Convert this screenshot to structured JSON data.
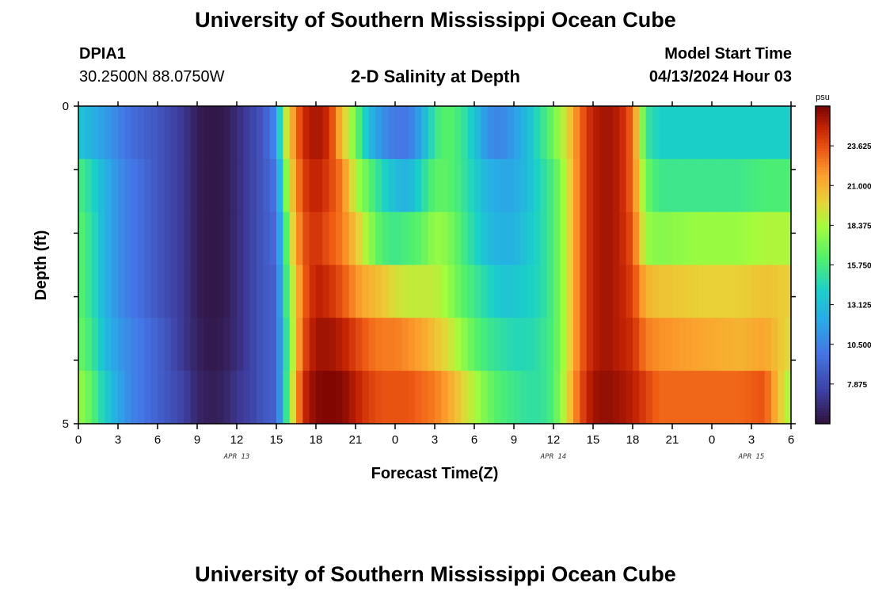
{
  "header": {
    "title": "University of Southern Mississippi Ocean Cube",
    "station": "DPIA1",
    "coordinates": "30.2500N  88.0750W",
    "subtitle": "2-D Salinity at Depth",
    "model_start_label": "Model Start Time",
    "model_start_value": "04/13/2024 Hour 03"
  },
  "footer": {
    "title": "University of Southern Mississippi Ocean Cube"
  },
  "chart_data": {
    "type": "heatmap",
    "xlabel": "Forecast Time(Z)",
    "ylabel": "Depth (ft)",
    "x_tick_labels": [
      "0",
      "3",
      "6",
      "9",
      "12",
      "15",
      "18",
      "21",
      "0",
      "3",
      "6",
      "9",
      "12",
      "15",
      "18",
      "21",
      "0",
      "3",
      "6"
    ],
    "x_range_hours": [
      0,
      54
    ],
    "date_labels": [
      {
        "label": "APR 13",
        "hour": 12
      },
      {
        "label": "APR 14",
        "hour": 36
      },
      {
        "label": "APR 15",
        "hour": 51
      }
    ],
    "y_tick_labels": [
      "0",
      "5"
    ],
    "y_range": [
      0,
      5
    ],
    "colorbar": {
      "unit": "psu",
      "tick_labels": [
        "7.875",
        "10.500",
        "13.125",
        "15.750",
        "18.375",
        "21.000",
        "23.625"
      ],
      "range": [
        5.25,
        26.25
      ]
    },
    "depth_rows": 6,
    "salinity_profile": [
      {
        "hour": 0,
        "depth_values": [
          13.5,
          16.0,
          16.5,
          16.5,
          17.0,
          18.0
        ]
      },
      {
        "hour": 1,
        "depth_values": [
          12.5,
          14.5,
          15.0,
          15.0,
          15.5,
          16.5
        ]
      },
      {
        "hour": 2,
        "depth_values": [
          11.5,
          12.5,
          12.5,
          12.5,
          13.0,
          14.0
        ]
      },
      {
        "hour": 3,
        "depth_values": [
          10.5,
          11.0,
          11.0,
          11.0,
          11.5,
          12.0
        ]
      },
      {
        "hour": 4,
        "depth_values": [
          9.5,
          10.0,
          10.0,
          10.0,
          10.5,
          10.5
        ]
      },
      {
        "hour": 6,
        "depth_values": [
          8.5,
          8.5,
          8.5,
          8.5,
          9.0,
          9.0
        ]
      },
      {
        "hour": 8,
        "depth_values": [
          7.0,
          7.0,
          7.0,
          7.0,
          7.0,
          7.5
        ]
      },
      {
        "hour": 9,
        "depth_values": [
          5.8,
          5.8,
          5.8,
          5.8,
          6.0,
          6.2
        ]
      },
      {
        "hour": 10,
        "depth_values": [
          5.5,
          5.5,
          5.5,
          5.5,
          5.6,
          5.8
        ]
      },
      {
        "hour": 11,
        "depth_values": [
          5.6,
          5.6,
          5.6,
          5.6,
          5.8,
          6.0
        ]
      },
      {
        "hour": 12,
        "depth_values": [
          6.5,
          6.5,
          6.5,
          6.5,
          6.5,
          7.0
        ]
      },
      {
        "hour": 13,
        "depth_values": [
          7.5,
          7.5,
          7.5,
          7.5,
          7.5,
          7.5
        ]
      },
      {
        "hour": 14,
        "depth_values": [
          8.5,
          8.5,
          8.5,
          8.5,
          8.5,
          8.5
        ]
      },
      {
        "hour": 15,
        "depth_values": [
          11.0,
          10.0,
          9.5,
          9.0,
          9.0,
          9.0
        ]
      },
      {
        "hour": 15.5,
        "depth_values": [
          17.5,
          15.5,
          14.0,
          13.5,
          13.0,
          13.0
        ]
      },
      {
        "hour": 16,
        "depth_values": [
          20.5,
          19.5,
          18.5,
          17.5,
          17.0,
          17.5
        ]
      },
      {
        "hour": 17,
        "depth_values": [
          24.5,
          24.0,
          23.5,
          23.0,
          23.5,
          24.5
        ]
      },
      {
        "hour": 18,
        "depth_values": [
          25.5,
          25.0,
          24.5,
          25.0,
          25.5,
          26.0
        ]
      },
      {
        "hour": 19,
        "depth_values": [
          24.5,
          24.0,
          23.5,
          24.5,
          25.5,
          26.2
        ]
      },
      {
        "hour": 20,
        "depth_values": [
          20.5,
          22.5,
          22.5,
          23.5,
          25.0,
          26.0
        ]
      },
      {
        "hour": 21,
        "depth_values": [
          17.0,
          18.5,
          20.5,
          22.0,
          24.0,
          25.0
        ]
      },
      {
        "hour": 22,
        "depth_values": [
          13.0,
          16.5,
          18.0,
          21.0,
          23.0,
          24.0
        ]
      },
      {
        "hour": 23,
        "depth_values": [
          11.0,
          14.5,
          16.0,
          20.5,
          22.5,
          23.5
        ]
      },
      {
        "hour": 24,
        "depth_values": [
          10.0,
          13.0,
          15.5,
          19.5,
          22.5,
          23.5
        ]
      },
      {
        "hour": 25,
        "depth_values": [
          10.0,
          12.5,
          16.0,
          19.0,
          22.0,
          23.5
        ]
      },
      {
        "hour": 26,
        "depth_values": [
          12.0,
          14.5,
          16.5,
          19.0,
          21.5,
          23.0
        ]
      },
      {
        "hour": 27,
        "depth_values": [
          15.5,
          16.5,
          18.0,
          19.0,
          20.5,
          22.5
        ]
      },
      {
        "hour": 28,
        "depth_values": [
          16.5,
          16.5,
          17.5,
          18.0,
          19.5,
          21.5
        ]
      },
      {
        "hour": 29,
        "depth_values": [
          15.5,
          15.5,
          16.0,
          16.5,
          18.0,
          20.0
        ]
      },
      {
        "hour": 30,
        "depth_values": [
          13.5,
          14.0,
          14.5,
          15.5,
          16.5,
          18.5
        ]
      },
      {
        "hour": 31,
        "depth_values": [
          11.0,
          12.5,
          13.0,
          14.5,
          15.5,
          17.0
        ]
      },
      {
        "hour": 32,
        "depth_values": [
          10.5,
          12.0,
          12.5,
          13.5,
          15.0,
          16.0
        ]
      },
      {
        "hour": 33,
        "depth_values": [
          11.5,
          12.0,
          12.5,
          13.5,
          14.5,
          15.5
        ]
      },
      {
        "hour": 34,
        "depth_values": [
          13.0,
          13.0,
          13.5,
          14.0,
          14.5,
          15.0
        ]
      },
      {
        "hour": 35,
        "depth_values": [
          15.0,
          14.5,
          14.5,
          14.5,
          15.0,
          15.0
        ]
      },
      {
        "hour": 36,
        "depth_values": [
          17.0,
          16.0,
          16.0,
          16.0,
          16.0,
          16.0
        ]
      },
      {
        "hour": 37,
        "depth_values": [
          19.5,
          19.0,
          19.0,
          19.0,
          19.0,
          19.5
        ]
      },
      {
        "hour": 38,
        "depth_values": [
          23.0,
          23.0,
          23.0,
          23.0,
          23.0,
          23.5
        ]
      },
      {
        "hour": 39,
        "depth_values": [
          25.0,
          25.0,
          25.0,
          25.0,
          25.0,
          25.5
        ]
      },
      {
        "hour": 40,
        "depth_values": [
          25.5,
          25.5,
          25.5,
          25.5,
          25.5,
          25.8
        ]
      },
      {
        "hour": 41,
        "depth_values": [
          25.0,
          25.0,
          25.0,
          25.0,
          25.0,
          25.5
        ]
      },
      {
        "hour": 42,
        "depth_values": [
          23.0,
          23.0,
          23.5,
          24.0,
          24.5,
          25.0
        ]
      },
      {
        "hour": 43,
        "depth_values": [
          15.5,
          17.0,
          18.0,
          21.0,
          22.5,
          24.0
        ]
      },
      {
        "hour": 44,
        "depth_values": [
          14.0,
          15.5,
          17.5,
          20.5,
          22.0,
          23.0
        ]
      },
      {
        "hour": 47,
        "depth_values": [
          14.0,
          15.5,
          18.0,
          20.0,
          21.5,
          23.0
        ]
      },
      {
        "hour": 50,
        "depth_values": [
          14.0,
          15.5,
          18.0,
          20.0,
          21.0,
          23.0
        ]
      },
      {
        "hour": 52,
        "depth_values": [
          14.0,
          16.0,
          18.5,
          20.5,
          21.5,
          23.5
        ]
      },
      {
        "hour": 54,
        "depth_values": [
          14.0,
          16.0,
          18.5,
          20.0,
          19.5,
          18.0
        ]
      }
    ]
  }
}
